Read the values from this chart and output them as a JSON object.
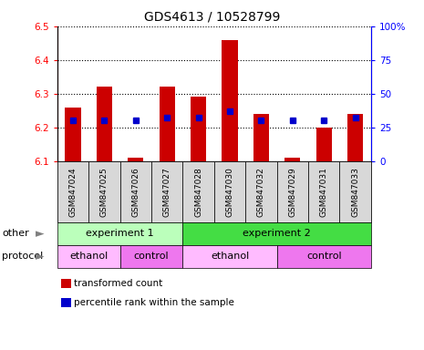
{
  "title": "GDS4613 / 10528799",
  "samples": [
    "GSM847024",
    "GSM847025",
    "GSM847026",
    "GSM847027",
    "GSM847028",
    "GSM847030",
    "GSM847032",
    "GSM847029",
    "GSM847031",
    "GSM847033"
  ],
  "bar_values": [
    6.26,
    6.32,
    6.11,
    6.32,
    6.29,
    6.46,
    6.24,
    6.11,
    6.2,
    6.24
  ],
  "dot_values_pct": [
    30,
    30,
    30,
    32,
    32,
    37,
    30,
    30,
    30,
    32
  ],
  "ylim_left": [
    6.1,
    6.5
  ],
  "ylim_right": [
    0,
    100
  ],
  "yticks_left": [
    6.1,
    6.2,
    6.3,
    6.4,
    6.5
  ],
  "yticks_right": [
    0,
    25,
    50,
    75,
    100
  ],
  "ytick_labels_right": [
    "0",
    "25",
    "50",
    "75",
    "100%"
  ],
  "bar_color": "#cc0000",
  "dot_color": "#0000cc",
  "bar_baseline": 6.1,
  "groups_other": [
    {
      "label": "experiment 1",
      "start": 0,
      "end": 4,
      "color": "#bbffbb"
    },
    {
      "label": "experiment 2",
      "start": 4,
      "end": 10,
      "color": "#44dd44"
    }
  ],
  "groups_protocol": [
    {
      "label": "ethanol",
      "start": 0,
      "end": 2,
      "color": "#ffbbff"
    },
    {
      "label": "control",
      "start": 2,
      "end": 4,
      "color": "#ee77ee"
    },
    {
      "label": "ethanol",
      "start": 4,
      "end": 7,
      "color": "#ffbbff"
    },
    {
      "label": "control",
      "start": 7,
      "end": 10,
      "color": "#ee77ee"
    }
  ],
  "legend_items": [
    {
      "color": "#cc0000",
      "label": "transformed count"
    },
    {
      "color": "#0000cc",
      "label": "percentile rank within the sample"
    }
  ],
  "other_label": "other",
  "protocol_label": "protocol",
  "title_fontsize": 10,
  "tick_fontsize": 7.5,
  "label_fontsize": 8,
  "sample_label_fontsize": 6.5,
  "bg_gray": "#d8d8d8"
}
